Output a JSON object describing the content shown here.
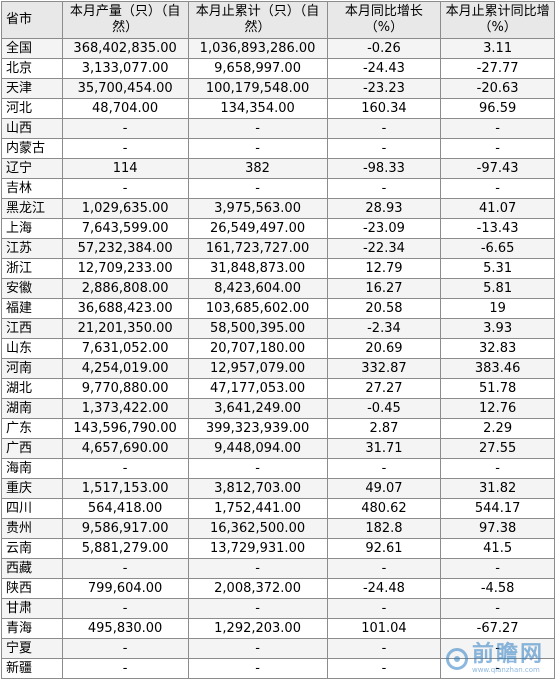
{
  "headers": [
    "省市",
    "本月产量（只）（自然）",
    "本月止累计（只）（自然）",
    "本月同比增长（%）",
    "本月止累计同比增（%）"
  ],
  "rows": [
    [
      "全国",
      "368,402,835.00",
      "1,036,893,286.00",
      "-0.26",
      "3.11"
    ],
    [
      "北京",
      "3,133,077.00",
      "9,658,997.00",
      "-24.43",
      "-27.77"
    ],
    [
      "天津",
      "35,700,454.00",
      "100,179,548.00",
      "-23.23",
      "-20.63"
    ],
    [
      "河北",
      "48,704.00",
      "134,354.00",
      "160.34",
      "96.59"
    ],
    [
      "山西",
      "-",
      "-",
      "-",
      "-"
    ],
    [
      "内蒙古",
      "-",
      "-",
      "-",
      "-"
    ],
    [
      "辽宁",
      "114",
      "382",
      "-98.33",
      "-97.43"
    ],
    [
      "吉林",
      "-",
      "-",
      "-",
      "-"
    ],
    [
      "黑龙江",
      "1,029,635.00",
      "3,975,563.00",
      "28.93",
      "41.07"
    ],
    [
      "上海",
      "7,643,599.00",
      "26,549,497.00",
      "-23.09",
      "-13.43"
    ],
    [
      "江苏",
      "57,232,384.00",
      "161,723,727.00",
      "-22.34",
      "-6.65"
    ],
    [
      "浙江",
      "12,709,233.00",
      "31,848,873.00",
      "12.79",
      "5.31"
    ],
    [
      "安徽",
      "2,886,808.00",
      "8,423,604.00",
      "16.27",
      "5.81"
    ],
    [
      "福建",
      "36,688,423.00",
      "103,685,602.00",
      "20.58",
      "19"
    ],
    [
      "江西",
      "21,201,350.00",
      "58,500,395.00",
      "-2.34",
      "3.93"
    ],
    [
      "山东",
      "7,631,052.00",
      "20,707,180.00",
      "20.69",
      "32.83"
    ],
    [
      "河南",
      "4,254,019.00",
      "12,957,079.00",
      "332.87",
      "383.46"
    ],
    [
      "湖北",
      "9,770,880.00",
      "47,177,053.00",
      "27.27",
      "51.78"
    ],
    [
      "湖南",
      "1,373,422.00",
      "3,641,249.00",
      "-0.45",
      "12.76"
    ],
    [
      "广东",
      "143,596,790.00",
      "399,323,939.00",
      "2.87",
      "2.29"
    ],
    [
      "广西",
      "4,657,690.00",
      "9,448,094.00",
      "31.71",
      "27.55"
    ],
    [
      "海南",
      "-",
      "-",
      "-",
      "-"
    ],
    [
      "重庆",
      "1,517,153.00",
      "3,812,703.00",
      "49.07",
      "31.82"
    ],
    [
      "四川",
      "564,418.00",
      "1,752,441.00",
      "480.62",
      "544.17"
    ],
    [
      "贵州",
      "9,586,917.00",
      "16,362,500.00",
      "182.8",
      "97.38"
    ],
    [
      "云南",
      "5,881,279.00",
      "13,729,931.00",
      "92.61",
      "41.5"
    ],
    [
      "西藏",
      "-",
      "-",
      "-",
      "-"
    ],
    [
      "陕西",
      "799,604.00",
      "2,008,372.00",
      "-24.48",
      "-4.58"
    ],
    [
      "甘肃",
      "-",
      "-",
      "-",
      "-"
    ],
    [
      "青海",
      "495,830.00",
      "1,292,203.00",
      "101.04",
      "-67.27"
    ],
    [
      "宁夏",
      "-",
      "-",
      "-",
      "-"
    ],
    [
      "新疆",
      "-",
      "-",
      "-",
      "-"
    ]
  ],
  "watermark": {
    "name": "前瞻网",
    "url": "www.qianzhan.com"
  }
}
